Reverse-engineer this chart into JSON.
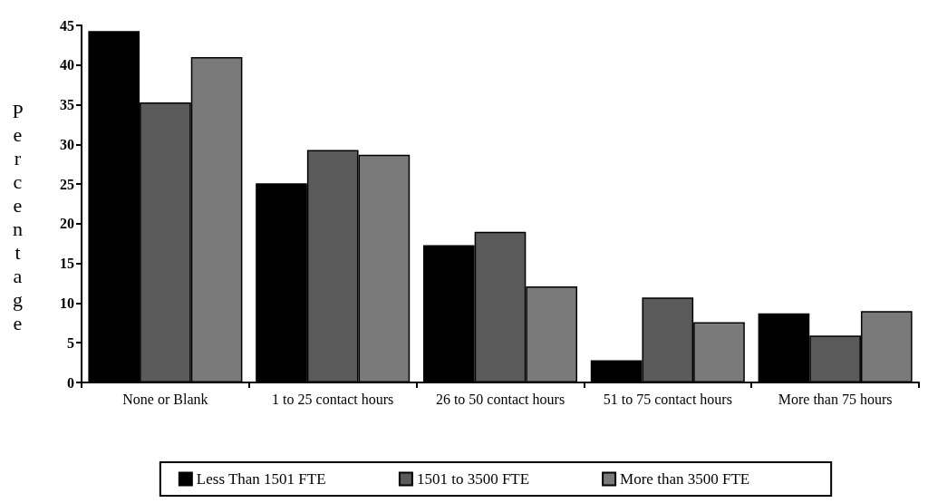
{
  "chart_data": {
    "type": "bar",
    "ylabel": "Percentage",
    "categories": [
      "None or Blank",
      "1 to 25 contact hours",
      "26 to 50 contact hours",
      "51 to 75 contact hours",
      "More than 75 hours"
    ],
    "series": [
      {
        "name": "Less Than 1501 FTE",
        "color": "#000000",
        "values": [
          44.3,
          25.1,
          17.3,
          2.8,
          8.7
        ]
      },
      {
        "name": "1501 to 3500 FTE",
        "color": "#5a5a5a",
        "values": [
          35.3,
          29.3,
          19.0,
          10.7,
          5.9
        ]
      },
      {
        "name": "More than 3500 FTE",
        "color": "#7a7a7a",
        "values": [
          41.0,
          28.7,
          12.1,
          7.6,
          9.0
        ]
      }
    ],
    "ylim": [
      0,
      45
    ],
    "yticks": [
      0,
      5,
      10,
      15,
      20,
      25,
      30,
      35,
      40,
      45
    ],
    "grid": false,
    "legend": "bottom"
  }
}
